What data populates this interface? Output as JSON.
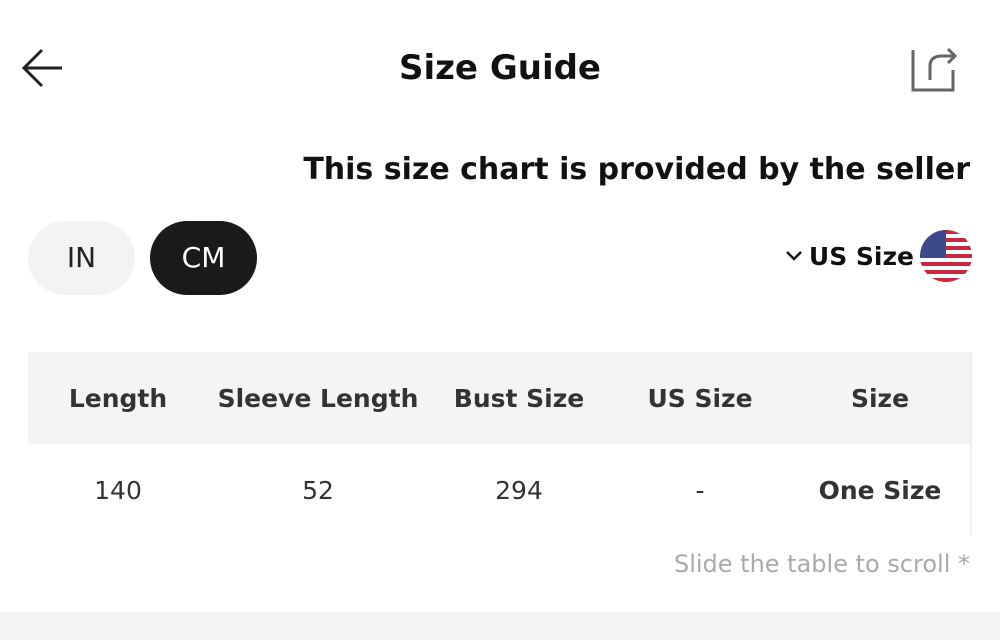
{
  "header": {
    "title": "Size Guide",
    "back_icon": "arrow-left-icon",
    "share_icon": "share-icon"
  },
  "notice": "This size chart is provided by the seller",
  "units": {
    "options": [
      "IN",
      "CM"
    ],
    "selected": "CM"
  },
  "region": {
    "label": "US Size",
    "chevron_icon": "chevron-down-icon",
    "flag_icon": "us-flag-icon"
  },
  "table": {
    "headers": [
      "Length",
      "Sleeve Length",
      "Bust Size",
      "US Size",
      "Size"
    ],
    "rows": [
      [
        "140",
        "52",
        "294",
        "-",
        "One Size"
      ]
    ]
  },
  "hint": "Slide the table to scroll *"
}
